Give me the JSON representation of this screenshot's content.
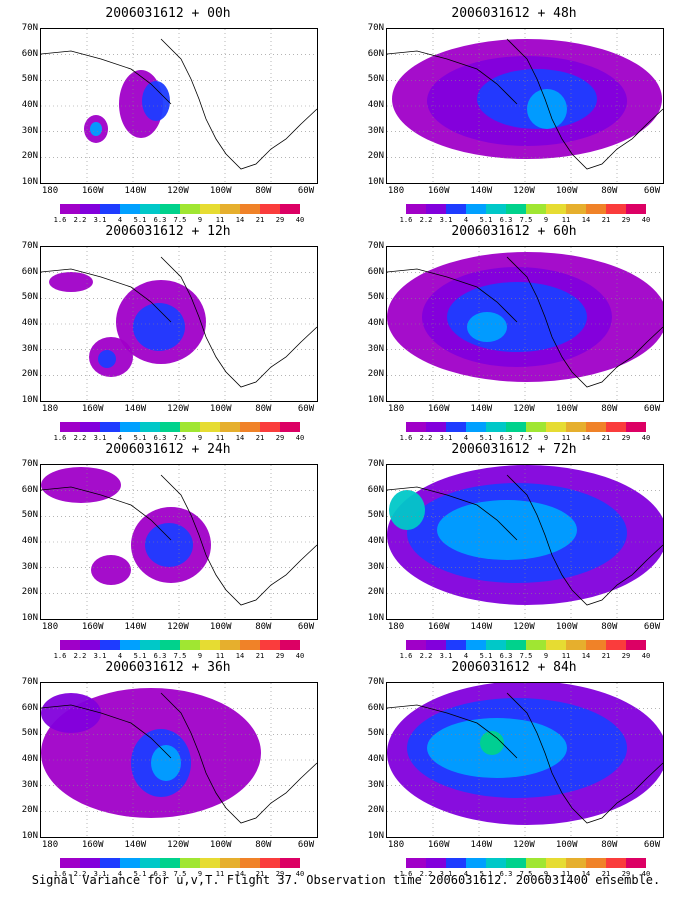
{
  "panels": [
    {
      "title": "2006031612 + 00h"
    },
    {
      "title": "2006031612 + 48h"
    },
    {
      "title": "2006031612 + 12h"
    },
    {
      "title": "2006031612 + 60h"
    },
    {
      "title": "2006031612 + 24h"
    },
    {
      "title": "2006031612 + 72h"
    },
    {
      "title": "2006031612 + 36h"
    },
    {
      "title": "2006031612 + 84h"
    }
  ],
  "lat_labels": [
    "70N",
    "60N",
    "50N",
    "40N",
    "30N",
    "20N",
    "10N"
  ],
  "lon_labels": [
    "180",
    "160W",
    "140W",
    "120W",
    "100W",
    "80W",
    "60W"
  ],
  "colorbar": {
    "labels": [
      "1.6",
      "2.2",
      "3.1",
      "4",
      "5.1",
      "6.3",
      "7.5",
      "9",
      "11",
      "14",
      "21",
      "29",
      "40"
    ],
    "colors": [
      "#a000c8",
      "#8200dc",
      "#1e3cff",
      "#00a0ff",
      "#00c8c8",
      "#00d28c",
      "#a0e632",
      "#e6dc32",
      "#e6af2d",
      "#f08228",
      "#fa3c3c",
      "#dc0064"
    ]
  },
  "footer": "Signal Variance for u,v,T. Flight 37. Observation time 2006031612. 2006031400 ensemble."
}
